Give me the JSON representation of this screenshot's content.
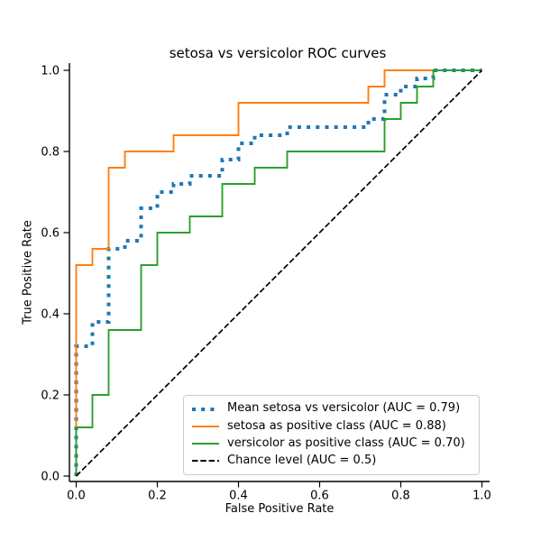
{
  "figure": {
    "background": "#ffffff"
  },
  "chart_data": {
    "type": "line",
    "title": "setosa vs versicolor ROC curves",
    "xlabel": "False Positive Rate",
    "ylabel": "True Positive Rate",
    "xlim": [
      0.0,
      1.0
    ],
    "ylim": [
      0.0,
      1.0
    ],
    "x_ticks": [
      "0.0",
      "0.2",
      "0.4",
      "0.6",
      "0.8",
      "1.0"
    ],
    "y_ticks": [
      "0.0",
      "0.2",
      "0.4",
      "0.6",
      "0.8",
      "1.0"
    ],
    "grid": false,
    "legend": {
      "position": "lower right",
      "border_color": "#cccccc",
      "background": "#ffffff"
    },
    "axis_color": "#000000",
    "series": [
      {
        "name": "Mean setosa vs versicolor (AUC = 0.79)",
        "auc": 0.79,
        "color": "#1f77b4",
        "style": "dotted",
        "width": 4,
        "points": [
          [
            0,
            0
          ],
          [
            0,
            0.32
          ],
          [
            0.04,
            0.32
          ],
          [
            0.04,
            0.38
          ],
          [
            0.08,
            0.38
          ],
          [
            0.08,
            0.56
          ],
          [
            0.12,
            0.56
          ],
          [
            0.12,
            0.58
          ],
          [
            0.16,
            0.58
          ],
          [
            0.16,
            0.66
          ],
          [
            0.2,
            0.66
          ],
          [
            0.2,
            0.7
          ],
          [
            0.24,
            0.7
          ],
          [
            0.24,
            0.72
          ],
          [
            0.28,
            0.72
          ],
          [
            0.28,
            0.74
          ],
          [
            0.36,
            0.74
          ],
          [
            0.36,
            0.78
          ],
          [
            0.4,
            0.78
          ],
          [
            0.4,
            0.82
          ],
          [
            0.44,
            0.82
          ],
          [
            0.44,
            0.84
          ],
          [
            0.52,
            0.84
          ],
          [
            0.52,
            0.86
          ],
          [
            0.72,
            0.86
          ],
          [
            0.72,
            0.88
          ],
          [
            0.76,
            0.88
          ],
          [
            0.76,
            0.94
          ],
          [
            0.8,
            0.94
          ],
          [
            0.8,
            0.96
          ],
          [
            0.84,
            0.96
          ],
          [
            0.84,
            0.98
          ],
          [
            0.88,
            0.98
          ],
          [
            0.88,
            1.0
          ],
          [
            1.0,
            1.0
          ]
        ]
      },
      {
        "name": "setosa as positive class (AUC = 0.88)",
        "auc": 0.88,
        "color": "#ff7f0e",
        "style": "solid",
        "width": 1.9,
        "points": [
          [
            0,
            0
          ],
          [
            0,
            0.52
          ],
          [
            0.04,
            0.52
          ],
          [
            0.04,
            0.56
          ],
          [
            0.08,
            0.56
          ],
          [
            0.08,
            0.76
          ],
          [
            0.12,
            0.76
          ],
          [
            0.12,
            0.8
          ],
          [
            0.24,
            0.8
          ],
          [
            0.24,
            0.84
          ],
          [
            0.4,
            0.84
          ],
          [
            0.4,
            0.92
          ],
          [
            0.72,
            0.92
          ],
          [
            0.72,
            0.96
          ],
          [
            0.76,
            0.96
          ],
          [
            0.76,
            1.0
          ],
          [
            1.0,
            1.0
          ]
        ]
      },
      {
        "name": "versicolor as positive class (AUC = 0.70)",
        "auc": 0.7,
        "color": "#2ca02c",
        "style": "solid",
        "width": 1.9,
        "points": [
          [
            0,
            0
          ],
          [
            0,
            0.12
          ],
          [
            0.04,
            0.12
          ],
          [
            0.04,
            0.2
          ],
          [
            0.08,
            0.2
          ],
          [
            0.08,
            0.36
          ],
          [
            0.16,
            0.36
          ],
          [
            0.16,
            0.52
          ],
          [
            0.2,
            0.52
          ],
          [
            0.2,
            0.6
          ],
          [
            0.28,
            0.6
          ],
          [
            0.28,
            0.64
          ],
          [
            0.36,
            0.64
          ],
          [
            0.36,
            0.72
          ],
          [
            0.44,
            0.72
          ],
          [
            0.44,
            0.76
          ],
          [
            0.52,
            0.76
          ],
          [
            0.52,
            0.8
          ],
          [
            0.76,
            0.8
          ],
          [
            0.76,
            0.88
          ],
          [
            0.8,
            0.88
          ],
          [
            0.8,
            0.92
          ],
          [
            0.84,
            0.92
          ],
          [
            0.84,
            0.96
          ],
          [
            0.88,
            0.96
          ],
          [
            0.88,
            1.0
          ],
          [
            1.0,
            1.0
          ]
        ]
      },
      {
        "name": "Chance level (AUC = 0.5)",
        "auc": 0.5,
        "color": "#000000",
        "style": "dashed",
        "width": 1.7,
        "points": [
          [
            0,
            0
          ],
          [
            1,
            1
          ]
        ]
      }
    ]
  }
}
